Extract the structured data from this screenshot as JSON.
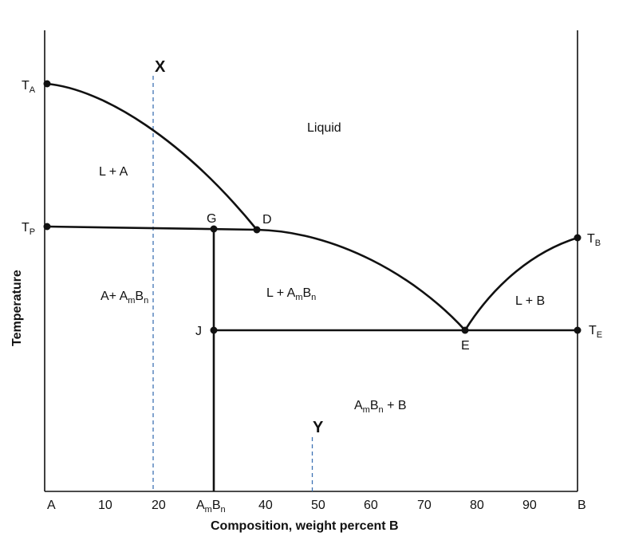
{
  "axis": {
    "ylabel": "Temperature",
    "xlabel": "Composition, weight percent B",
    "ticks": [
      "A",
      "10",
      "20",
      "AmBn",
      "40",
      "50",
      "60",
      "70",
      "80",
      "90",
      "B"
    ]
  },
  "temps": {
    "TA": {
      "main": "T",
      "sub": "A"
    },
    "TP": {
      "main": "T",
      "sub": "P"
    },
    "TB": {
      "main": "T",
      "sub": "B"
    },
    "TE": {
      "main": "T",
      "sub": "E"
    }
  },
  "points": {
    "G": "G",
    "D": "D",
    "J": "J",
    "E": "E"
  },
  "regions": {
    "liquid": "Liquid",
    "l_a": "L + A",
    "a_ambn": {
      "p1": "A+ A",
      "s1": "m",
      "p2": "B",
      "s2": "n"
    },
    "l_ambn": {
      "p1": "L + A",
      "s1": "m",
      "p2": "B",
      "s2": "n"
    },
    "l_b": "L + B",
    "ambn_b": {
      "p1": "A",
      "s1": "m",
      "p2": "B",
      "s2": "n",
      "p3": " + B"
    }
  },
  "markers": {
    "x": "X",
    "y": "Y"
  },
  "composition": {
    "x_line": 20,
    "y_line": 50,
    "compound": 31,
    "peritectic": 39,
    "eutectic": 78
  }
}
